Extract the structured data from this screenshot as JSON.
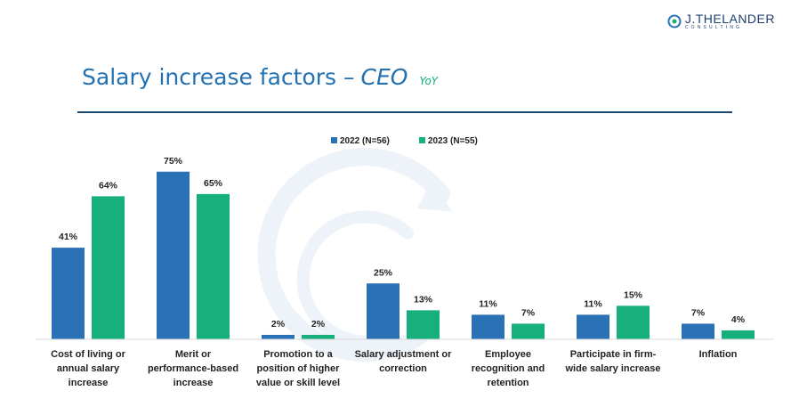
{
  "logo": {
    "name": "J.THELANDER",
    "sub": "CONSULTING"
  },
  "title": {
    "main": "Salary increase factors –",
    "emphasis": "CEO",
    "tag": "YoY"
  },
  "chart_data": {
    "type": "bar",
    "title": "",
    "xlabel": "",
    "ylabel": "",
    "ylim": [
      0,
      80
    ],
    "grid": false,
    "legend_position": "top",
    "categories": [
      [
        "Cost of living or",
        "annual salary",
        "increase"
      ],
      [
        "Merit or",
        "performance-based",
        "increase"
      ],
      [
        "Promotion to a",
        "position of higher",
        "value or skill level"
      ],
      [
        "Salary adjustment or",
        "correction"
      ],
      [
        "Employee",
        "recognition and",
        "retention"
      ],
      [
        "Participate in firm-",
        "wide salary increase"
      ],
      [
        "Inflation"
      ]
    ],
    "series": [
      {
        "name": "2022 (N=56)",
        "color": "#2a72b5",
        "values": [
          41,
          75,
          2,
          25,
          11,
          11,
          7
        ]
      },
      {
        "name": "2023 (N=55)",
        "color": "#17b07c",
        "values": [
          64,
          65,
          2,
          13,
          7,
          15,
          4
        ]
      }
    ],
    "value_suffix": "%"
  }
}
